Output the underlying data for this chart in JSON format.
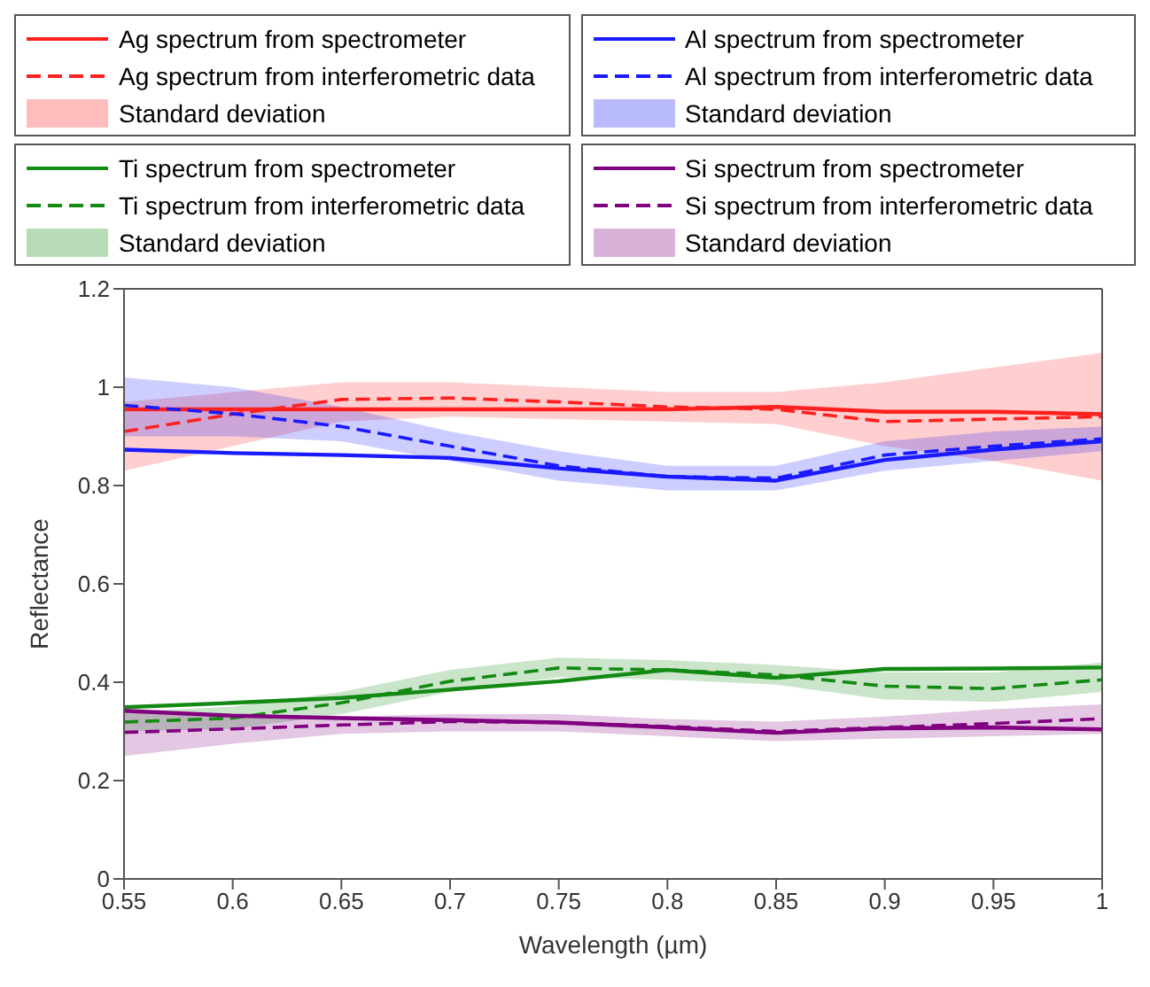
{
  "chart_data": {
    "type": "line",
    "xlabel": "Wavelength (µm)",
    "ylabel": "Reflectance",
    "x": [
      0.55,
      0.6,
      0.65,
      0.7,
      0.75,
      0.8,
      0.85,
      0.9,
      0.95,
      1
    ],
    "xlim": [
      0.55,
      1
    ],
    "xticks": [
      0.55,
      0.6,
      0.65,
      0.7,
      0.75,
      0.8,
      0.85,
      0.9,
      0.95,
      1
    ],
    "ylim": [
      0,
      1.2
    ],
    "yticks": [
      0,
      0.2,
      0.4,
      0.6,
      0.8,
      1,
      1.2
    ],
    "grid": false,
    "legend": "top",
    "marker": "none",
    "annotations": [
      "Standard deviation",
      "Standard deviation",
      "Standard deviation",
      "Standard deviation"
    ],
    "series": [
      {
        "name": "Ag spectrum from spectrometer",
        "color": "#ff2020",
        "line_style": "solid",
        "values": [
          0.955,
          0.955,
          0.955,
          0.955,
          0.955,
          0.955,
          0.96,
          0.95,
          0.95,
          0.945
        ]
      },
      {
        "name": "Ag spectrum from interferometric data",
        "color": "#ff2020",
        "line_style": "dashed",
        "values": [
          0.91,
          0.945,
          0.975,
          0.978,
          0.97,
          0.96,
          0.955,
          0.93,
          0.935,
          0.94
        ],
        "lower": [
          0.83,
          0.88,
          0.93,
          0.94,
          0.935,
          0.93,
          0.925,
          0.88,
          0.85,
          0.81
        ],
        "upper": [
          0.97,
          0.99,
          1.01,
          1.01,
          1.0,
          0.99,
          0.99,
          1.01,
          1.04,
          1.07
        ]
      },
      {
        "name": "Al spectrum from spectrometer",
        "color": "#1a1aff",
        "line_style": "solid",
        "values": [
          0.873,
          0.866,
          0.862,
          0.856,
          0.835,
          0.818,
          0.81,
          0.852,
          0.873,
          0.89
        ]
      },
      {
        "name": "Al spectrum from interferometric data",
        "color": "#1a1aff",
        "line_style": "dashed",
        "values": [
          0.963,
          0.946,
          0.92,
          0.88,
          0.84,
          0.818,
          0.815,
          0.862,
          0.88,
          0.895
        ],
        "lower": [
          0.9,
          0.9,
          0.89,
          0.85,
          0.81,
          0.79,
          0.79,
          0.83,
          0.85,
          0.87
        ],
        "upper": [
          1.02,
          1.0,
          0.96,
          0.91,
          0.87,
          0.84,
          0.84,
          0.89,
          0.91,
          0.92
        ]
      },
      {
        "name": "Ti spectrum from spectrometer",
        "color": "#138a13",
        "line_style": "solid",
        "values": [
          0.349,
          0.358,
          0.368,
          0.385,
          0.402,
          0.425,
          0.409,
          0.427,
          0.428,
          0.43
        ]
      },
      {
        "name": "Ti spectrum from interferometric data",
        "color": "#138a13",
        "line_style": "dashed",
        "values": [
          0.319,
          0.327,
          0.358,
          0.402,
          0.429,
          0.425,
          0.415,
          0.392,
          0.387,
          0.405
        ],
        "lower": [
          0.3,
          0.305,
          0.335,
          0.38,
          0.41,
          0.405,
          0.395,
          0.365,
          0.36,
          0.38
        ],
        "upper": [
          0.34,
          0.35,
          0.38,
          0.425,
          0.45,
          0.445,
          0.435,
          0.42,
          0.42,
          0.44
        ]
      },
      {
        "name": "Si spectrum from spectrometer",
        "color": "#800080",
        "line_style": "solid",
        "values": [
          0.342,
          0.332,
          0.327,
          0.323,
          0.318,
          0.308,
          0.297,
          0.306,
          0.308,
          0.304
        ]
      },
      {
        "name": "Si spectrum from interferometric data",
        "color": "#800080",
        "line_style": "dashed",
        "values": [
          0.298,
          0.305,
          0.313,
          0.32,
          0.318,
          0.31,
          0.3,
          0.308,
          0.316,
          0.326
        ],
        "lower": [
          0.25,
          0.275,
          0.295,
          0.3,
          0.3,
          0.29,
          0.28,
          0.285,
          0.29,
          0.295
        ],
        "upper": [
          0.34,
          0.335,
          0.33,
          0.335,
          0.335,
          0.325,
          0.32,
          0.33,
          0.345,
          0.355
        ]
      }
    ]
  }
}
